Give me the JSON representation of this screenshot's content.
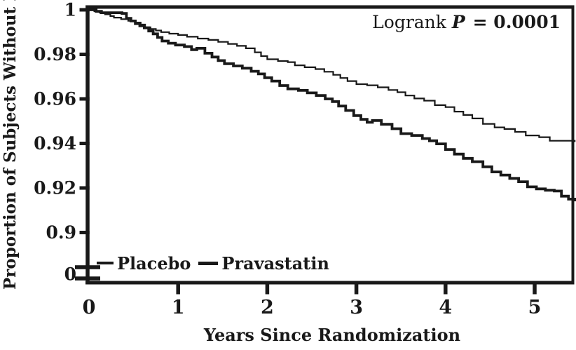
{
  "figure": {
    "annotation": {
      "prefix": "Logrank",
      "p_symbol": "P",
      "suffix": "= 0.0001"
    },
    "ink_color": "#191919",
    "background_color": "#ffffff"
  },
  "chart_data": {
    "type": "line",
    "subtype": "kaplan-meier-step",
    "title": "",
    "xlabel": "Years Since Randomization",
    "ylabel": "Proportion of Subjects Without Event",
    "annotation_text": "Logrank P = 0.0001",
    "logrank_p": "0.0001",
    "grid": false,
    "legend_position": "inside-bottom-left",
    "xlim": [
      0,
      5.46
    ],
    "ylim_main": [
      0.9,
      1.0
    ],
    "y_axis_break": {
      "present": true,
      "lower_tick_label": "0"
    },
    "xticks": [
      0,
      1,
      2,
      3,
      4,
      5
    ],
    "xtick_labels": [
      "0",
      "1",
      "2",
      "3",
      "4",
      "5"
    ],
    "yticks": [
      1,
      0.98,
      0.96,
      0.94,
      0.92,
      0.9
    ],
    "ytick_labels": [
      "1",
      "0.98",
      "0.96",
      "0.94",
      "0.92",
      "0.9"
    ],
    "series": [
      {
        "name": "Placebo",
        "stroke_width": 2.2,
        "points": [
          [
            0,
            1
          ],
          [
            0.06,
            0.9994
          ],
          [
            0.12,
            0.9987
          ],
          [
            0.18,
            0.998
          ],
          [
            0.24,
            0.9972
          ],
          [
            0.28,
            0.9965
          ],
          [
            0.36,
            0.9958
          ],
          [
            0.44,
            0.9951
          ],
          [
            0.52,
            0.9943
          ],
          [
            0.58,
            0.9934
          ],
          [
            0.63,
            0.9922
          ],
          [
            0.69,
            0.9914
          ],
          [
            0.75,
            0.9907
          ],
          [
            0.81,
            0.99
          ],
          [
            0.9,
            0.9893
          ],
          [
            1,
            0.9887
          ],
          [
            1.1,
            0.9879
          ],
          [
            1.22,
            0.9871
          ],
          [
            1.34,
            0.9865
          ],
          [
            1.45,
            0.9856
          ],
          [
            1.56,
            0.9847
          ],
          [
            1.66,
            0.9838
          ],
          [
            1.76,
            0.9827
          ],
          [
            1.86,
            0.9809
          ],
          [
            1.93,
            0.9792
          ],
          [
            2,
            0.9778
          ],
          [
            2.12,
            0.977
          ],
          [
            2.23,
            0.9765
          ],
          [
            2.31,
            0.9751
          ],
          [
            2.42,
            0.9742
          ],
          [
            2.54,
            0.9734
          ],
          [
            2.64,
            0.9722
          ],
          [
            2.74,
            0.9708
          ],
          [
            2.82,
            0.9694
          ],
          [
            2.9,
            0.968
          ],
          [
            3,
            0.9666
          ],
          [
            3.12,
            0.9661
          ],
          [
            3.24,
            0.9652
          ],
          [
            3.36,
            0.964
          ],
          [
            3.46,
            0.963
          ],
          [
            3.55,
            0.9615
          ],
          [
            3.65,
            0.9602
          ],
          [
            3.76,
            0.9592
          ],
          [
            3.88,
            0.9572
          ],
          [
            4,
            0.9563
          ],
          [
            4.1,
            0.9543
          ],
          [
            4.2,
            0.9528
          ],
          [
            4.3,
            0.9512
          ],
          [
            4.42,
            0.9488
          ],
          [
            4.55,
            0.9472
          ],
          [
            4.66,
            0.9465
          ],
          [
            4.78,
            0.9452
          ],
          [
            4.9,
            0.9436
          ],
          [
            5.05,
            0.9428
          ],
          [
            5.17,
            0.9412
          ],
          [
            5.45,
            0.941
          ]
        ]
      },
      {
        "name": "Pravastatin",
        "stroke_width": 3.8,
        "points": [
          [
            0,
            1
          ],
          [
            0.08,
            0.9993
          ],
          [
            0.14,
            0.9987
          ],
          [
            0.37,
            0.9984
          ],
          [
            0.42,
            0.9962
          ],
          [
            0.47,
            0.995
          ],
          [
            0.52,
            0.9938
          ],
          [
            0.57,
            0.9928
          ],
          [
            0.62,
            0.9919
          ],
          [
            0.67,
            0.9905
          ],
          [
            0.72,
            0.9892
          ],
          [
            0.77,
            0.9876
          ],
          [
            0.82,
            0.986
          ],
          [
            0.89,
            0.985
          ],
          [
            0.97,
            0.9842
          ],
          [
            1.07,
            0.9835
          ],
          [
            1.15,
            0.9821
          ],
          [
            1.21,
            0.9827
          ],
          [
            1.3,
            0.9805
          ],
          [
            1.38,
            0.9788
          ],
          [
            1.45,
            0.9772
          ],
          [
            1.52,
            0.9758
          ],
          [
            1.62,
            0.9748
          ],
          [
            1.72,
            0.9738
          ],
          [
            1.82,
            0.9724
          ],
          [
            1.9,
            0.9712
          ],
          [
            1.97,
            0.9695
          ],
          [
            2.05,
            0.968
          ],
          [
            2.14,
            0.966
          ],
          [
            2.23,
            0.9645
          ],
          [
            2.35,
            0.9638
          ],
          [
            2.45,
            0.9627
          ],
          [
            2.55,
            0.9615
          ],
          [
            2.65,
            0.96
          ],
          [
            2.73,
            0.9588
          ],
          [
            2.8,
            0.9568
          ],
          [
            2.88,
            0.9548
          ],
          [
            2.97,
            0.9525
          ],
          [
            3.05,
            0.9508
          ],
          [
            3.12,
            0.9495
          ],
          [
            3.18,
            0.9503
          ],
          [
            3.28,
            0.9486
          ],
          [
            3.4,
            0.9466
          ],
          [
            3.5,
            0.9444
          ],
          [
            3.62,
            0.9436
          ],
          [
            3.74,
            0.9422
          ],
          [
            3.82,
            0.9412
          ],
          [
            3.9,
            0.9398
          ],
          [
            4,
            0.9373
          ],
          [
            4.1,
            0.9352
          ],
          [
            4.2,
            0.9333
          ],
          [
            4.3,
            0.9318
          ],
          [
            4.42,
            0.9295
          ],
          [
            4.52,
            0.9272
          ],
          [
            4.62,
            0.9258
          ],
          [
            4.72,
            0.9243
          ],
          [
            4.82,
            0.9228
          ],
          [
            4.92,
            0.9205
          ],
          [
            5.02,
            0.9196
          ],
          [
            5.12,
            0.919
          ],
          [
            5.22,
            0.9186
          ],
          [
            5.3,
            0.9163
          ],
          [
            5.38,
            0.915
          ],
          [
            5.45,
            0.9146
          ]
        ]
      }
    ]
  }
}
